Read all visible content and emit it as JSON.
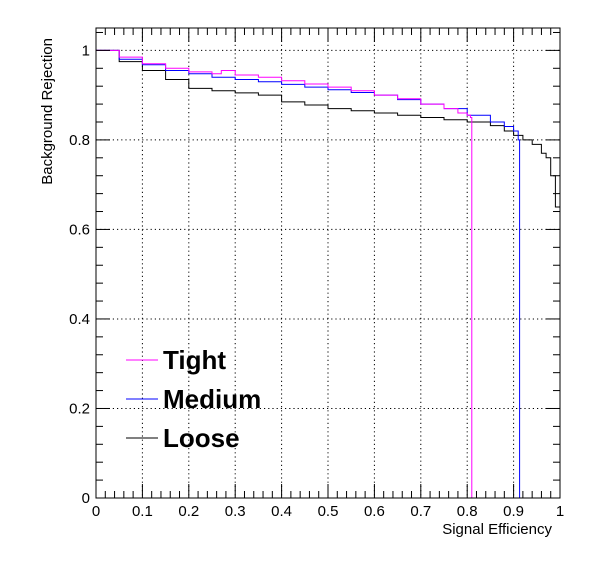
{
  "chart_data": {
    "type": "line",
    "title": "",
    "xlabel": "Signal Efficiency",
    "ylabel": "Background Rejection",
    "xlim": [
      0,
      1
    ],
    "ylim": [
      0,
      1.05
    ],
    "grid": true,
    "legend_position": "bottom-left",
    "x_ticks": [
      "0",
      "0.1",
      "0.2",
      "0.3",
      "0.4",
      "0.5",
      "0.6",
      "0.7",
      "0.8",
      "0.9",
      "1"
    ],
    "y_ticks": [
      "0",
      "0.2",
      "0.4",
      "0.6",
      "0.8",
      "1"
    ],
    "series": [
      {
        "name": "Tight",
        "color": "#ff00ff",
        "step": true,
        "x": [
          0.0,
          0.05,
          0.1,
          0.15,
          0.2,
          0.25,
          0.27,
          0.3,
          0.35,
          0.4,
          0.45,
          0.5,
          0.55,
          0.6,
          0.65,
          0.7,
          0.75,
          0.78,
          0.8,
          0.807,
          0.81
        ],
        "y": [
          1.0,
          0.985,
          0.97,
          0.96,
          0.952,
          0.948,
          0.955,
          0.945,
          0.94,
          0.932,
          0.925,
          0.918,
          0.91,
          0.9,
          0.892,
          0.88,
          0.87,
          0.86,
          0.855,
          0.85,
          0.0
        ]
      },
      {
        "name": "Medium",
        "color": "#0000ff",
        "step": true,
        "x": [
          0.0,
          0.05,
          0.1,
          0.15,
          0.2,
          0.25,
          0.3,
          0.35,
          0.4,
          0.45,
          0.5,
          0.55,
          0.6,
          0.65,
          0.7,
          0.75,
          0.8,
          0.85,
          0.88,
          0.9,
          0.91,
          0.913
        ],
        "y": [
          1.0,
          0.98,
          0.968,
          0.955,
          0.948,
          0.94,
          0.935,
          0.93,
          0.924,
          0.918,
          0.912,
          0.906,
          0.9,
          0.89,
          0.88,
          0.87,
          0.855,
          0.84,
          0.83,
          0.82,
          0.8,
          0.0
        ]
      },
      {
        "name": "Loose",
        "color": "#000000",
        "step": true,
        "x": [
          0.0,
          0.05,
          0.1,
          0.15,
          0.2,
          0.25,
          0.3,
          0.35,
          0.4,
          0.45,
          0.5,
          0.55,
          0.6,
          0.65,
          0.7,
          0.75,
          0.8,
          0.85,
          0.88,
          0.9,
          0.92,
          0.94,
          0.96,
          0.97,
          0.98,
          0.99,
          1.0
        ],
        "y": [
          1.0,
          0.975,
          0.955,
          0.935,
          0.915,
          0.91,
          0.905,
          0.9,
          0.885,
          0.878,
          0.87,
          0.865,
          0.86,
          0.855,
          0.85,
          0.845,
          0.84,
          0.832,
          0.82,
          0.81,
          0.8,
          0.79,
          0.77,
          0.76,
          0.72,
          0.65,
          0.63
        ]
      }
    ]
  }
}
